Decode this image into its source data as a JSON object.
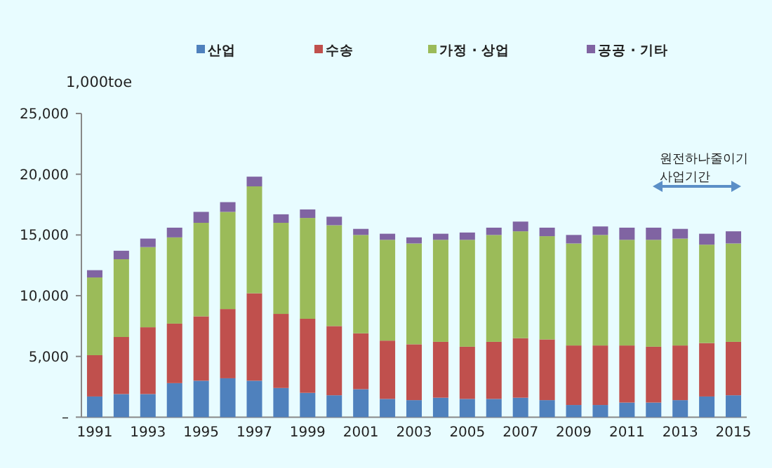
{
  "chart_data": {
    "type": "bar",
    "stacked": true,
    "ylabel": "1,000toe",
    "legend": "top",
    "grid": false,
    "categories": [
      "1991",
      null,
      "1993",
      null,
      "1995",
      null,
      "1997",
      null,
      "1999",
      null,
      "2001",
      null,
      "2003",
      null,
      "2005",
      null,
      "2007",
      null,
      "2009",
      null,
      "2011",
      null,
      "2013",
      null,
      "2015"
    ],
    "ylim": [
      0,
      25000
    ],
    "yticks": [
      {
        "value": 0,
        "label": "–"
      },
      {
        "value": 5000,
        "label": "5,000"
      },
      {
        "value": 10000,
        "label": "10,000"
      },
      {
        "value": 15000,
        "label": "15,000"
      },
      {
        "value": 20000,
        "label": "20,000"
      },
      {
        "value": 25000,
        "label": "25,000"
      }
    ],
    "series": [
      {
        "name": "산업",
        "color": "#4f81bd",
        "values": [
          1700,
          1900,
          1900,
          2800,
          3000,
          3200,
          3000,
          2400,
          2000,
          1800,
          2300,
          1500,
          1400,
          1600,
          1500,
          1500,
          1600,
          1400,
          1000,
          1000,
          1200,
          1200,
          1400,
          1700,
          1800
        ]
      },
      {
        "name": "수송",
        "color": "#c0504d",
        "values": [
          3400,
          4700,
          5500,
          4900,
          5300,
          5700,
          7200,
          6100,
          6100,
          5700,
          4600,
          4800,
          4600,
          4600,
          4300,
          4700,
          4900,
          5000,
          4900,
          4900,
          4700,
          4600,
          4500,
          4400,
          4400
        ]
      },
      {
        "name": "가정 · 상업",
        "color": "#9bbb59",
        "values": [
          6400,
          6400,
          6600,
          7100,
          7700,
          8000,
          8800,
          7500,
          8300,
          8300,
          8100,
          8300,
          8300,
          8400,
          8800,
          8800,
          8800,
          8500,
          8400,
          9100,
          8700,
          8800,
          8800,
          8100,
          8100
        ]
      },
      {
        "name": "공공 · 기타",
        "color": "#8064a2",
        "values": [
          600,
          700,
          700,
          800,
          900,
          800,
          800,
          700,
          700,
          700,
          500,
          500,
          500,
          500,
          600,
          600,
          800,
          700,
          700,
          700,
          1000,
          1000,
          800,
          900,
          1000
        ]
      }
    ],
    "annotations": [
      "원전하나줄이기 사업기간"
    ]
  }
}
